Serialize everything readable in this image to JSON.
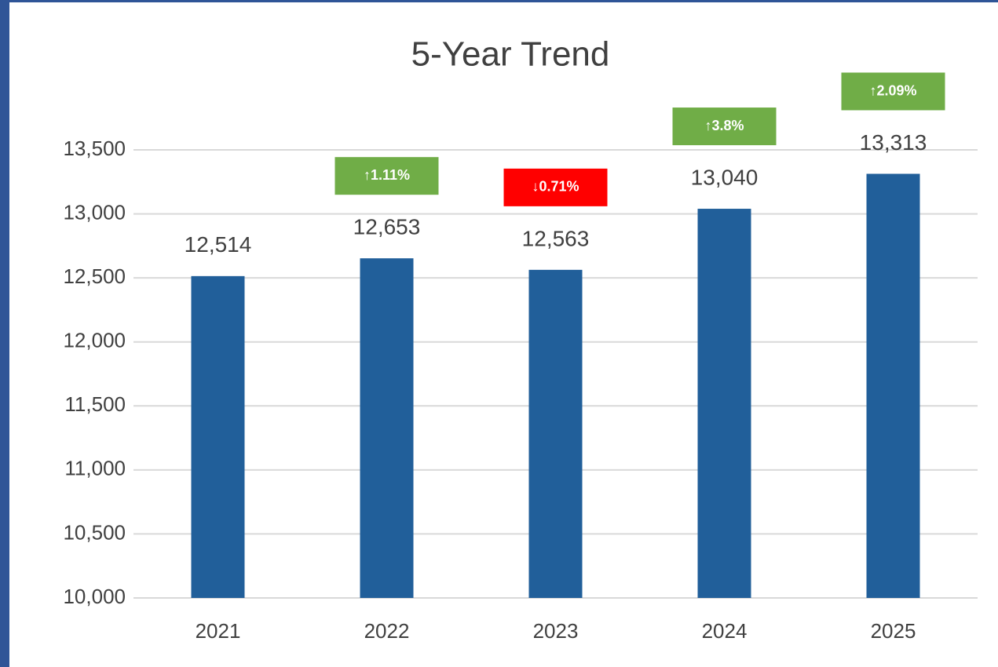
{
  "chart_data": {
    "type": "bar",
    "title": "5-Year Trend",
    "categories": [
      "2021",
      "2022",
      "2023",
      "2024",
      "2025"
    ],
    "values": [
      12514,
      12653,
      12563,
      13040,
      13313
    ],
    "value_labels": [
      "12,514",
      "12,653",
      "12,563",
      "13,040",
      "13,313"
    ],
    "color": "#215f9a",
    "change_labels": [
      null,
      "↑1.11%",
      "↓0.71%",
      "↑3.8%",
      "↑2.09%"
    ],
    "change_colors": [
      null,
      "#70ad47",
      "#ff0000",
      "#70ad47",
      "#70ad47"
    ],
    "ylim": [
      10000,
      13500
    ],
    "yticks": [
      {
        "value": 10000,
        "label": "10,000"
      },
      {
        "value": 10500,
        "label": "10,500"
      },
      {
        "value": 11000,
        "label": "11,000"
      },
      {
        "value": 11500,
        "label": "11,500"
      },
      {
        "value": 12000,
        "label": "12,000"
      },
      {
        "value": 12500,
        "label": "12,500"
      },
      {
        "value": 13000,
        "label": "13,000"
      },
      {
        "value": 13500,
        "label": "13,500"
      }
    ],
    "grid": true
  }
}
